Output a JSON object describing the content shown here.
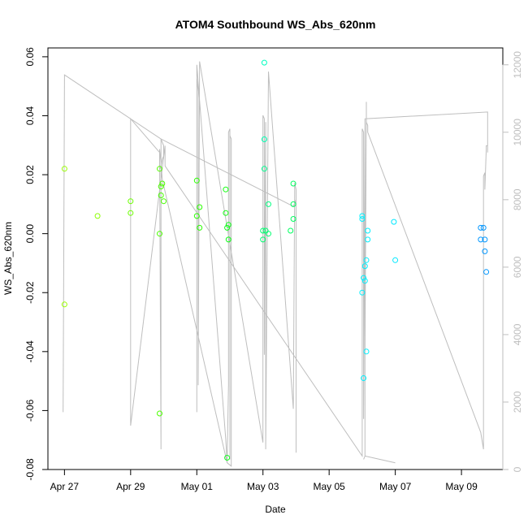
{
  "chart_data": {
    "type": "scatter",
    "title": "ATOM4 Southbound WS_Abs_620nm",
    "xlabel": "Date",
    "ylabel": "WS_Abs_620nm",
    "x_ticks": [
      "Apr 27",
      "Apr 29",
      "May 01",
      "May 03",
      "May 05",
      "May 07",
      "May 09"
    ],
    "y_ticks": [
      "-0.08",
      "-0.06",
      "-0.04",
      "-0.02",
      "0.00",
      "0.02",
      "0.04",
      "0.06"
    ],
    "y2_ticks": [
      "0",
      "2000",
      "4000",
      "6000",
      "8000",
      "10000",
      "12000"
    ],
    "xlim": [
      "Apr 26 12:00",
      "May 10 06:00"
    ],
    "ylim": [
      -0.08,
      0.063
    ],
    "y2lim": [
      0,
      12500
    ],
    "grid": false,
    "legend": "none",
    "colors": {
      "line": "#bebebe",
      "axis": "#000000",
      "secondary_axis": "#bebebe"
    },
    "series": [
      {
        "values": [
          {
            "x": "Apr 27 00:00",
            "y": 0.022,
            "color": "#9aff00"
          },
          {
            "x": "Apr 27 00:00",
            "y": -0.024,
            "color": "#9aff00"
          },
          {
            "x": "Apr 28 00:00",
            "y": 0.006,
            "color": "#8cff00"
          },
          {
            "x": "Apr 29 00:00",
            "y": 0.011,
            "color": "#6cff00"
          },
          {
            "x": "Apr 29 00:00",
            "y": 0.007,
            "color": "#6cff00"
          },
          {
            "x": "Apr 29 21:00",
            "y": 0.022,
            "color": "#55ff00"
          },
          {
            "x": "Apr 29 22:00",
            "y": 0.016,
            "color": "#4cff00"
          },
          {
            "x": "Apr 29 23:00",
            "y": 0.017,
            "color": "#4cff00"
          },
          {
            "x": "Apr 29 21:00",
            "y": 0.0,
            "color": "#4cff00"
          },
          {
            "x": "Apr 29 21:00",
            "y": -0.061,
            "color": "#4cff00"
          },
          {
            "x": "Apr 29 22:00",
            "y": 0.013,
            "color": "#48ff00"
          },
          {
            "x": "Apr 30 00:00",
            "y": 0.011,
            "color": "#48ff00"
          },
          {
            "x": "May 01 00:00",
            "y": 0.018,
            "color": "#2aff00"
          },
          {
            "x": "May 01 02:00",
            "y": 0.009,
            "color": "#2aff00"
          },
          {
            "x": "May 01 00:00",
            "y": 0.006,
            "color": "#2aff00"
          },
          {
            "x": "May 01 02:00",
            "y": 0.002,
            "color": "#2aff00"
          },
          {
            "x": "May 01 21:00",
            "y": 0.015,
            "color": "#12ff10"
          },
          {
            "x": "May 01 21:00",
            "y": 0.007,
            "color": "#12ff10"
          },
          {
            "x": "May 01 23:00",
            "y": 0.003,
            "color": "#0eff18"
          },
          {
            "x": "May 01 22:00",
            "y": 0.002,
            "color": "#0eff18"
          },
          {
            "x": "May 01 23:00",
            "y": -0.002,
            "color": "#0eff18"
          },
          {
            "x": "May 01 22:00",
            "y": -0.076,
            "color": "#14ff20"
          },
          {
            "x": "May 03 01:00",
            "y": 0.058,
            "color": "#00ffc0"
          },
          {
            "x": "May 03 01:00",
            "y": 0.032,
            "color": "#00ffb0"
          },
          {
            "x": "May 03 01:00",
            "y": 0.022,
            "color": "#00ff90"
          },
          {
            "x": "May 03 04:00",
            "y": 0.01,
            "color": "#00ff80"
          },
          {
            "x": "May 03 00:00",
            "y": 0.001,
            "color": "#00ff70"
          },
          {
            "x": "May 03 02:00",
            "y": 0.001,
            "color": "#00ff70"
          },
          {
            "x": "May 03 04:00",
            "y": 0.0,
            "color": "#00ff70"
          },
          {
            "x": "May 03 00:00",
            "y": -0.002,
            "color": "#00ff70"
          },
          {
            "x": "May 03 22:00",
            "y": 0.017,
            "color": "#00ff60"
          },
          {
            "x": "May 03 22:00",
            "y": 0.01,
            "color": "#00ff60"
          },
          {
            "x": "May 03 22:00",
            "y": 0.005,
            "color": "#00ff60"
          },
          {
            "x": "May 03 20:00",
            "y": 0.001,
            "color": "#00ff60"
          },
          {
            "x": "May 06 00:00",
            "y": 0.006,
            "color": "#00f0ff"
          },
          {
            "x": "May 06 00:00",
            "y": 0.005,
            "color": "#00f0ff"
          },
          {
            "x": "May 06 04:00",
            "y": 0.001,
            "color": "#00f0ff"
          },
          {
            "x": "May 06 04:00",
            "y": -0.002,
            "color": "#00f0ff"
          },
          {
            "x": "May 06 03:00",
            "y": -0.009,
            "color": "#00f0ff"
          },
          {
            "x": "May 06 02:00",
            "y": -0.011,
            "color": "#00f0ff"
          },
          {
            "x": "May 06 01:00",
            "y": -0.015,
            "color": "#00f0ff"
          },
          {
            "x": "May 06 02:00",
            "y": -0.016,
            "color": "#00f0ff"
          },
          {
            "x": "May 06 00:00",
            "y": -0.02,
            "color": "#00f0ff"
          },
          {
            "x": "May 06 03:00",
            "y": -0.04,
            "color": "#00f0ff"
          },
          {
            "x": "May 06 01:00",
            "y": -0.049,
            "color": "#00f0ff"
          },
          {
            "x": "May 06 23:00",
            "y": 0.004,
            "color": "#00e8ff"
          },
          {
            "x": "May 07 00:00",
            "y": -0.009,
            "color": "#00e8ff"
          },
          {
            "x": "May 09 14:00",
            "y": 0.002,
            "color": "#0096ff"
          },
          {
            "x": "May 09 16:00",
            "y": 0.002,
            "color": "#0096ff"
          },
          {
            "x": "May 09 14:00",
            "y": -0.002,
            "color": "#0096ff"
          },
          {
            "x": "May 09 17:00",
            "y": -0.002,
            "color": "#0096ff"
          },
          {
            "x": "May 09 17:00",
            "y": -0.006,
            "color": "#0096ff"
          },
          {
            "x": "May 09 18:00",
            "y": -0.013,
            "color": "#0096ff"
          }
        ]
      },
      {
        "axis": "right",
        "type": "line",
        "values": [
          {
            "x": "Apr 26 23:00",
            "y": 1700
          },
          {
            "x": "Apr 27 00:00",
            "y": 11700
          },
          {
            "x": "Apr 29 22:00",
            "y": 9800
          },
          {
            "x": "Apr 30 00:00",
            "y": 9600
          },
          {
            "x": "Apr 30 00:00",
            "y": 9300
          },
          {
            "x": "Apr 29 23:00",
            "y": 9200
          },
          {
            "x": "Apr 29 22:00",
            "y": 9000
          },
          {
            "x": "Apr 29 21:00",
            "y": 8900
          },
          {
            "x": "Apr 29 21:00",
            "y": 9500
          },
          {
            "x": "Apr 29 22:00",
            "y": 9100
          },
          {
            "x": "Apr 29 23:00",
            "y": 8600
          },
          {
            "x": "May 01 22:00",
            "y": 200
          },
          {
            "x": "May 01 23:00",
            "y": 2500
          },
          {
            "x": "May 01 23:00",
            "y": 10000
          },
          {
            "x": "May 02 00:00",
            "y": 10100
          },
          {
            "x": "May 02 00:00",
            "y": 300
          },
          {
            "x": "May 02 00:00",
            "y": 9900
          },
          {
            "x": "May 02 01:00",
            "y": 9800
          },
          {
            "x": "May 02 01:00",
            "y": 100
          },
          {
            "x": "May 01 22:00",
            "y": 200
          },
          {
            "x": "May 01 21:00",
            "y": 900
          },
          {
            "x": "May 01 00:00",
            "y": 12000
          },
          {
            "x": "May 01 00:00",
            "y": 1700
          },
          {
            "x": "May 01 00:00",
            "y": 11600
          },
          {
            "x": "May 01 01:00",
            "y": 11200
          },
          {
            "x": "May 01 01:00",
            "y": 2500
          },
          {
            "x": "May 01 02:00",
            "y": 12100
          },
          {
            "x": "May 03 00:00",
            "y": 800
          },
          {
            "x": "May 03 00:00",
            "y": 10500
          },
          {
            "x": "May 03 01:00",
            "y": 10400
          },
          {
            "x": "May 03 01:00",
            "y": 3400
          },
          {
            "x": "May 03 02:00",
            "y": 10300
          },
          {
            "x": "May 03 02:00",
            "y": 600
          },
          {
            "x": "May 03 04:00",
            "y": 11800
          },
          {
            "x": "May 03 22:00",
            "y": 1800
          },
          {
            "x": "May 03 23:00",
            "y": 8500
          },
          {
            "x": "May 04 00:00",
            "y": 8300
          },
          {
            "x": "May 04 00:00",
            "y": 500
          },
          {
            "x": "May 04 00:00",
            "y": 8000
          },
          {
            "x": "May 03 22:00",
            "y": 7800
          },
          {
            "x": "Apr 29 22:00",
            "y": 9800
          },
          {
            "x": "Apr 29 22:00",
            "y": 600
          },
          {
            "x": "Apr 29 21:00",
            "y": 9400
          },
          {
            "x": "Apr 29 00:00",
            "y": 10400
          },
          {
            "x": "Apr 29 00:00",
            "y": 1300
          },
          {
            "x": "Apr 30 01:00",
            "y": 9600
          },
          {
            "x": "Apr 30 01:00",
            "y": 9000
          },
          {
            "x": "May 06 00:00",
            "y": 400
          },
          {
            "x": "May 06 00:00",
            "y": 10100
          },
          {
            "x": "May 06 01:00",
            "y": 10000
          },
          {
            "x": "May 06 01:00",
            "y": 1500
          },
          {
            "x": "May 06 02:00",
            "y": 10400
          },
          {
            "x": "May 06 02:00",
            "y": 3400
          },
          {
            "x": "May 06 03:00",
            "y": 10500
          },
          {
            "x": "May 06 03:00",
            "y": 10900
          },
          {
            "x": "May 06 03:00",
            "y": 10300
          },
          {
            "x": "May 06 04:00",
            "y": 10200
          },
          {
            "x": "May 06 04:00",
            "y": 10000
          },
          {
            "x": "May 09 14:00",
            "y": 1100
          },
          {
            "x": "May 09 16:00",
            "y": 600
          },
          {
            "x": "May 09 16:00",
            "y": 8700
          },
          {
            "x": "May 09 17:00",
            "y": 8800
          },
          {
            "x": "May 09 17:00",
            "y": 8300
          },
          {
            "x": "May 09 18:00",
            "y": 9500
          },
          {
            "x": "May 09 18:00",
            "y": 9600
          },
          {
            "x": "May 09 19:00",
            "y": 9600
          },
          {
            "x": "May 09 19:00",
            "y": 9400
          },
          {
            "x": "May 09 19:00",
            "y": 10600
          },
          {
            "x": "May 06 02:00",
            "y": 10400
          },
          {
            "x": "May 06 02:00",
            "y": 400
          },
          {
            "x": "May 07 00:00",
            "y": 200
          },
          {
            "x": "May 06 02:00",
            "y": 400
          },
          {
            "x": "May 06 01:00",
            "y": 300
          }
        ]
      }
    ]
  }
}
